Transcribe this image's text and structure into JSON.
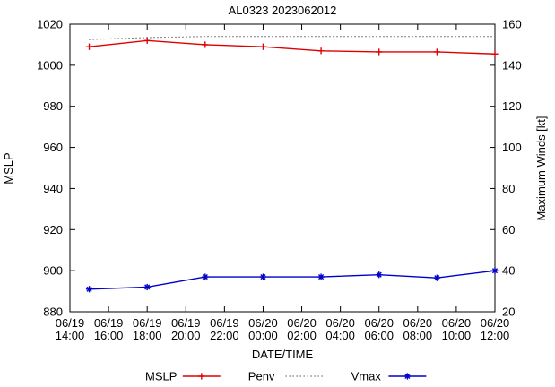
{
  "chart_data": {
    "type": "line",
    "title": "AL0323 2023062012",
    "xlabel": "DATE/TIME",
    "ylabel_left": "MSLP",
    "ylabel_right": "Maximum Winds [kt]",
    "grid": false,
    "legend_position": "bottom-center",
    "x_range": {
      "min": 0,
      "max": 22
    },
    "x_ticks": [
      {
        "hour": 0,
        "date": "06/19",
        "time": "14:00"
      },
      {
        "hour": 2,
        "date": "06/19",
        "time": "16:00"
      },
      {
        "hour": 4,
        "date": "06/19",
        "time": "18:00"
      },
      {
        "hour": 6,
        "date": "06/19",
        "time": "20:00"
      },
      {
        "hour": 8,
        "date": "06/19",
        "time": "22:00"
      },
      {
        "hour": 10,
        "date": "06/20",
        "time": "00:00"
      },
      {
        "hour": 12,
        "date": "06/20",
        "time": "02:00"
      },
      {
        "hour": 14,
        "date": "06/20",
        "time": "04:00"
      },
      {
        "hour": 16,
        "date": "06/20",
        "time": "06:00"
      },
      {
        "hour": 18,
        "date": "06/20",
        "time": "08:00"
      },
      {
        "hour": 20,
        "date": "06/20",
        "time": "10:00"
      },
      {
        "hour": 22,
        "date": "06/20",
        "time": "12:00"
      }
    ],
    "y_left": {
      "label": "MSLP",
      "min": 880,
      "max": 1020,
      "ticks": [
        880,
        900,
        920,
        940,
        960,
        980,
        1000,
        1020
      ]
    },
    "y_right": {
      "label": "Maximum Winds [kt]",
      "min": 20,
      "max": 160,
      "ticks": [
        20,
        40,
        60,
        80,
        100,
        120,
        140,
        160
      ]
    },
    "series": [
      {
        "name": "MSLP",
        "axis": "left",
        "color": "#e00000",
        "marker": "plus",
        "line_style": "solid",
        "hours": [
          1,
          4,
          7,
          10,
          13,
          16,
          19,
          22
        ],
        "values": [
          1009,
          1012,
          1010,
          1009,
          1007,
          1006.5,
          1006.5,
          1005.5
        ]
      },
      {
        "name": "Penv",
        "axis": "left",
        "color": "#000000",
        "marker": "none",
        "line_style": "dotted",
        "hours": [
          1,
          4,
          7,
          10,
          13,
          16,
          19,
          22
        ],
        "values": [
          1012.5,
          1013.5,
          1014,
          1014,
          1014,
          1014,
          1014,
          1014
        ]
      },
      {
        "name": "Vmax",
        "axis": "right",
        "color": "#0000cc",
        "marker": "asterisk",
        "line_style": "solid",
        "hours": [
          1,
          4,
          7,
          10,
          13,
          16,
          19,
          22
        ],
        "values": [
          31,
          32,
          37,
          37,
          37,
          38,
          36.5,
          40
        ]
      }
    ],
    "legend_entries": [
      "MSLP",
      "Penv",
      "Vmax"
    ]
  }
}
